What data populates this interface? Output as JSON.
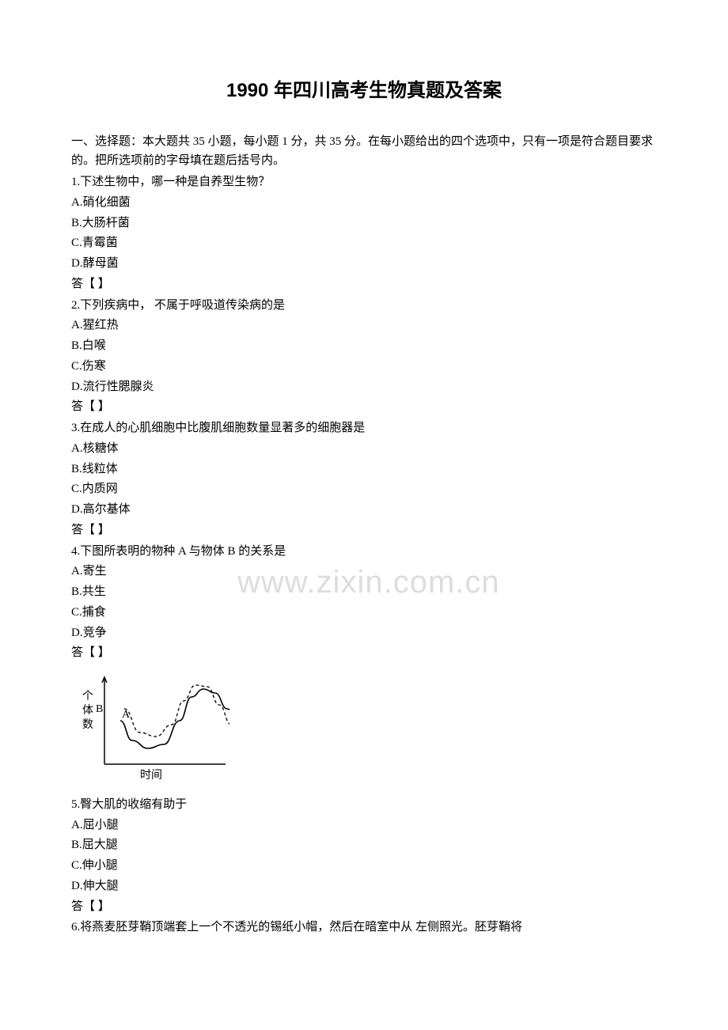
{
  "title": "1990 年四川高考生物真题及答案",
  "intro": "一、选择题：本大题共 35 小题，每小题 1 分，共 35 分。在每小题给出的四个选项中，只有一项是符合题目要求的。把所选项前的字母填在题后括号内。",
  "answer_label": "答【  】",
  "questions": [
    {
      "stem": "1.下述生物中，哪一种是自养型生物？",
      "opts": [
        "A.硝化细菌",
        "B.大肠杆菌",
        "C.青霉菌",
        "D.酵母菌"
      ]
    },
    {
      "stem": "2.下列疾病中，  不属于呼吸道传染病的是",
      "opts": [
        "A.猩红热",
        "B.白喉",
        "C.伤寒",
        "D.流行性腮腺炎"
      ]
    },
    {
      "stem": "3.在成人的心肌细胞中比腹肌细胞数量显著多的细胞器是",
      "opts": [
        "A.核糖体",
        "B.线粒体",
        "C.内质网",
        "D.高尔基体"
      ]
    },
    {
      "stem": "4.下图所表明的物种 A 与物体 B 的关系是",
      "opts": [
        "A.寄生",
        "B.共生",
        "C.捕食",
        "D.竞争"
      ]
    },
    {
      "stem": "5.臀大肌的收缩有助于",
      "opts": [
        "A.屈小腿",
        "B.屈大腿",
        "C.伸小腿",
        "D.伸大腿"
      ]
    },
    {
      "stem": "6.将燕麦胚芽鞘顶端套上一个不透光的锡纸小帽，然后在暗室中从 左侧照光。胚芽鞘将",
      "opts": []
    }
  ],
  "chart": {
    "type": "line",
    "width": 190,
    "height": 140,
    "axis_color": "#000000",
    "line_color": "#000000",
    "background_color": "#ffffff",
    "y_label": "个体数",
    "x_label": "时间",
    "label_fontsize": 14,
    "series_A": {
      "label": "A",
      "dash": "none",
      "points": [
        [
          20,
          55
        ],
        [
          35,
          30
        ],
        [
          55,
          20
        ],
        [
          75,
          25
        ],
        [
          95,
          55
        ],
        [
          110,
          85
        ],
        [
          125,
          95
        ],
        [
          140,
          90
        ],
        [
          155,
          70
        ],
        [
          170,
          55
        ]
      ]
    },
    "series_B": {
      "label": "B",
      "dash": "4 3",
      "points": [
        [
          25,
          70
        ],
        [
          45,
          40
        ],
        [
          65,
          35
        ],
        [
          85,
          50
        ],
        [
          100,
          80
        ],
        [
          115,
          100
        ],
        [
          130,
          98
        ],
        [
          145,
          75
        ],
        [
          160,
          50
        ],
        [
          175,
          48
        ]
      ]
    }
  },
  "watermark": "www.zixin.com.cn"
}
